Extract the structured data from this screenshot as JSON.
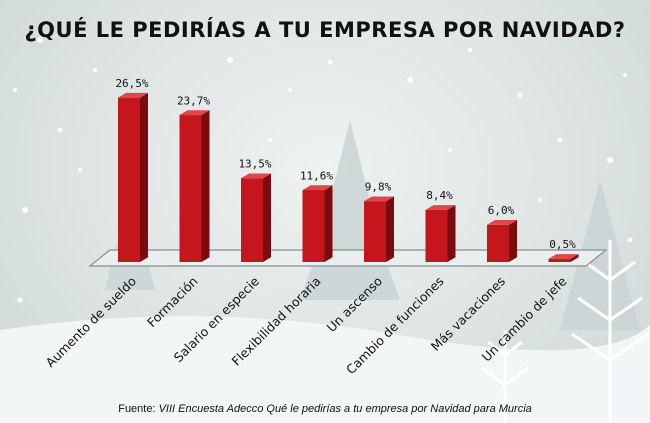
{
  "chart_data": {
    "type": "bar",
    "title": "¿QUÉ LE PEDIRÍAS A TU EMPRESA POR NAVIDAD?",
    "categories": [
      "Aumento de sueldo",
      "Formación",
      "Salario en especie",
      "Flexibilidad horaria",
      "Un ascenso",
      "Cambio de funciones",
      "Más vacaciones",
      "Un cambio de jefe"
    ],
    "values": [
      26.5,
      23.7,
      13.5,
      11.6,
      9.8,
      8.4,
      6.0,
      0.5
    ],
    "value_labels": [
      "26,5%",
      "23,7%",
      "13,5%",
      "11,6%",
      "9,8%",
      "8,4%",
      "6,0%",
      "0,5%"
    ],
    "xlabel": "",
    "ylabel": "",
    "ylim": [
      0,
      30
    ],
    "grid": false,
    "colors": {
      "bar_front": "#c4161c",
      "bar_side": "#7a0c10",
      "bar_top": "#e0474b"
    }
  },
  "footer": {
    "source_label": "Fuente: ",
    "source_text": "VIII Encuesta Adecco Qué le pedirías a tu empresa por Navidad para Murcia"
  }
}
